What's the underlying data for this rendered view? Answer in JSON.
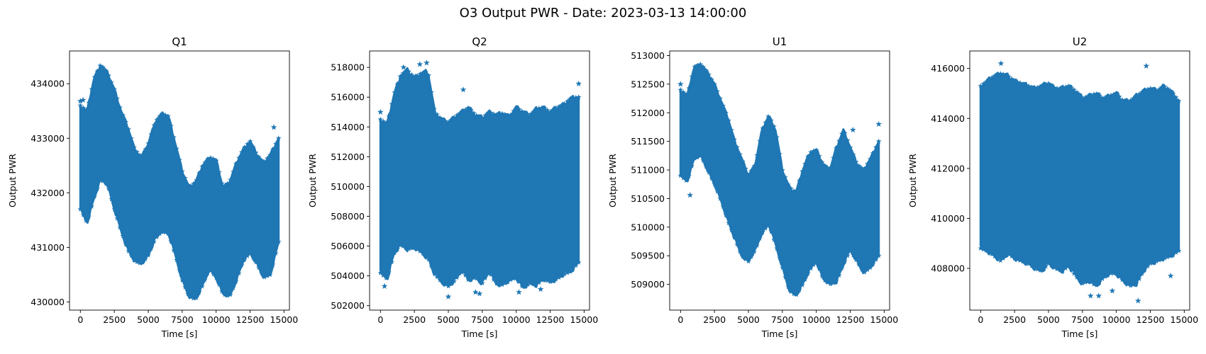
{
  "figure": {
    "suptitle": "O3 Output PWR - Date: 2023-03-13 14:00:00",
    "marker_color": "#1f77b4",
    "marker": "star"
  },
  "chart_data": [
    {
      "type": "scatter",
      "title": "Q1",
      "xlabel": "Time [s]",
      "ylabel": "Output PWR",
      "xlim": [
        -800,
        15400
      ],
      "ylim": [
        429850,
        434600
      ],
      "xticks": [
        0,
        2500,
        5000,
        7500,
        10000,
        12500,
        15000
      ],
      "yticks": [
        430000,
        431000,
        432000,
        433000,
        434000
      ],
      "x_range": [
        0,
        14600
      ],
      "envelope": {
        "x": [
          0,
          500,
          1000,
          1500,
          2000,
          2500,
          3000,
          3500,
          4000,
          4500,
          5000,
          5500,
          6000,
          6500,
          7000,
          7500,
          8000,
          8500,
          9000,
          9500,
          10000,
          10500,
          11000,
          11500,
          12000,
          12500,
          13000,
          13500,
          14000,
          14600
        ],
        "upper": [
          433600,
          433500,
          434100,
          434350,
          434200,
          433900,
          433500,
          433200,
          432800,
          432650,
          432900,
          433300,
          433450,
          433400,
          432900,
          432400,
          432100,
          432200,
          432500,
          432650,
          432600,
          432100,
          432200,
          432550,
          432800,
          432950,
          432700,
          432550,
          432700,
          433000
        ],
        "lower": [
          431700,
          431450,
          431900,
          432250,
          432150,
          431700,
          431300,
          430950,
          430750,
          430700,
          430850,
          431150,
          431300,
          431250,
          430850,
          430400,
          430100,
          430050,
          430300,
          430600,
          430450,
          430150,
          430100,
          430400,
          430750,
          430900,
          430700,
          430450,
          430500,
          431100
        ]
      },
      "outliers": [
        {
          "x": 0,
          "y": 433680
        },
        {
          "x": 200,
          "y": 433700
        },
        {
          "x": 2300,
          "y": 432150
        },
        {
          "x": 14250,
          "y": 433200
        }
      ]
    },
    {
      "type": "scatter",
      "title": "Q2",
      "xlabel": "Time [s]",
      "ylabel": "Output PWR",
      "xlim": [
        -800,
        15400
      ],
      "ylim": [
        501700,
        519100
      ],
      "xticks": [
        0,
        2500,
        5000,
        7500,
        10000,
        12500,
        15000
      ],
      "yticks": [
        502000,
        504000,
        506000,
        508000,
        510000,
        512000,
        514000,
        516000,
        518000
      ],
      "x_range": [
        0,
        14600
      ],
      "envelope": {
        "x": [
          0,
          500,
          1000,
          1500,
          2000,
          2500,
          3000,
          3500,
          4000,
          4500,
          5000,
          5500,
          6000,
          6500,
          7000,
          7500,
          8000,
          8500,
          9000,
          9500,
          10000,
          10500,
          11000,
          11500,
          12000,
          12500,
          13000,
          13500,
          14000,
          14600
        ],
        "upper": [
          514500,
          514200,
          516200,
          517500,
          517800,
          517300,
          517600,
          517700,
          515000,
          514500,
          514300,
          514700,
          515000,
          515300,
          514800,
          514600,
          515000,
          514800,
          514900,
          514700,
          515300,
          515000,
          514800,
          515200,
          515300,
          515000,
          515300,
          515500,
          515900,
          516000
        ],
        "lower": [
          504200,
          503800,
          505500,
          506100,
          505800,
          505900,
          505600,
          505200,
          504100,
          503600,
          503300,
          503700,
          504400,
          503700,
          503900,
          503500,
          504300,
          503500,
          503400,
          503700,
          503900,
          503200,
          503500,
          503400,
          503800,
          503600,
          503800,
          504100,
          504300,
          504900
        ]
      },
      "outliers": [
        {
          "x": 0,
          "y": 515000
        },
        {
          "x": 300,
          "y": 503300
        },
        {
          "x": 1700,
          "y": 518000
        },
        {
          "x": 2900,
          "y": 518200
        },
        {
          "x": 3400,
          "y": 518300
        },
        {
          "x": 5000,
          "y": 502600
        },
        {
          "x": 6100,
          "y": 516500
        },
        {
          "x": 7000,
          "y": 502900
        },
        {
          "x": 7300,
          "y": 502800
        },
        {
          "x": 10200,
          "y": 502900
        },
        {
          "x": 11800,
          "y": 503100
        },
        {
          "x": 14600,
          "y": 516900
        }
      ]
    },
    {
      "type": "scatter",
      "title": "U1",
      "xlabel": "Time [s]",
      "ylabel": "Output PWR",
      "xlim": [
        -800,
        15400
      ],
      "ylim": [
        508550,
        513080
      ],
      "xticks": [
        0,
        2500,
        5000,
        7500,
        10000,
        12500,
        15000
      ],
      "yticks": [
        509000,
        509500,
        510000,
        510500,
        511000,
        511500,
        512000,
        512500,
        513000
      ],
      "x_range": [
        0,
        14600
      ],
      "envelope": {
        "x": [
          0,
          500,
          1000,
          1500,
          2000,
          2500,
          3000,
          3500,
          4000,
          4500,
          5000,
          5500,
          6000,
          6500,
          7000,
          7500,
          8000,
          8500,
          9000,
          9500,
          10000,
          10500,
          11000,
          11500,
          12000,
          12500,
          13000,
          13500,
          14000,
          14600
        ],
        "upper": [
          512400,
          512300,
          512800,
          512850,
          512700,
          512500,
          512200,
          511900,
          511500,
          511200,
          510900,
          511100,
          511700,
          511950,
          511700,
          511000,
          510700,
          510600,
          511000,
          511300,
          511350,
          511100,
          511000,
          511400,
          511700,
          511400,
          511100,
          511000,
          511200,
          511500
        ],
        "lower": [
          510900,
          510800,
          511200,
          511250,
          511000,
          510750,
          510450,
          510100,
          509800,
          509500,
          509400,
          509600,
          509900,
          510050,
          509700,
          509300,
          508900,
          508800,
          509000,
          509250,
          509400,
          509100,
          509000,
          509050,
          509350,
          509600,
          509400,
          509200,
          509300,
          509500
        ]
      },
      "outliers": [
        {
          "x": 0,
          "y": 512500
        },
        {
          "x": 700,
          "y": 510560
        },
        {
          "x": 12700,
          "y": 511700
        },
        {
          "x": 14600,
          "y": 511800
        }
      ]
    },
    {
      "type": "scatter",
      "title": "U2",
      "xlabel": "Time [s]",
      "ylabel": "Output PWR",
      "xlim": [
        -800,
        15400
      ],
      "ylim": [
        406330,
        416700
      ],
      "xticks": [
        0,
        2500,
        5000,
        7500,
        10000,
        12500,
        15000
      ],
      "yticks": [
        408000,
        410000,
        412000,
        414000,
        416000
      ],
      "x_range": [
        0,
        14600
      ],
      "envelope": {
        "x": [
          0,
          500,
          1000,
          1500,
          2000,
          2500,
          3000,
          3500,
          4000,
          4500,
          5000,
          5500,
          6000,
          6500,
          7000,
          7500,
          8000,
          8500,
          9000,
          9500,
          10000,
          10500,
          11000,
          11500,
          12000,
          12500,
          13000,
          13500,
          14000,
          14600
        ],
        "upper": [
          415300,
          415500,
          415700,
          415800,
          415700,
          415500,
          415400,
          415300,
          415200,
          415300,
          415400,
          415200,
          415200,
          415300,
          415100,
          414800,
          414900,
          415000,
          414800,
          414900,
          415000,
          414700,
          414700,
          414900,
          415100,
          415200,
          415100,
          415300,
          415100,
          414700
        ],
        "lower": [
          408800,
          408700,
          408500,
          408300,
          408600,
          408400,
          408300,
          408200,
          408000,
          407900,
          408200,
          408000,
          407900,
          408100,
          407700,
          407400,
          407500,
          407300,
          407600,
          407800,
          407800,
          407500,
          407300,
          407400,
          407900,
          408200,
          408300,
          408400,
          408500,
          408700
        ]
      },
      "outliers": [
        {
          "x": 1500,
          "y": 416200
        },
        {
          "x": 8100,
          "y": 406900
        },
        {
          "x": 8700,
          "y": 406900
        },
        {
          "x": 9700,
          "y": 407100
        },
        {
          "x": 11600,
          "y": 406700
        },
        {
          "x": 12200,
          "y": 416100
        },
        {
          "x": 14000,
          "y": 407700
        }
      ]
    }
  ]
}
